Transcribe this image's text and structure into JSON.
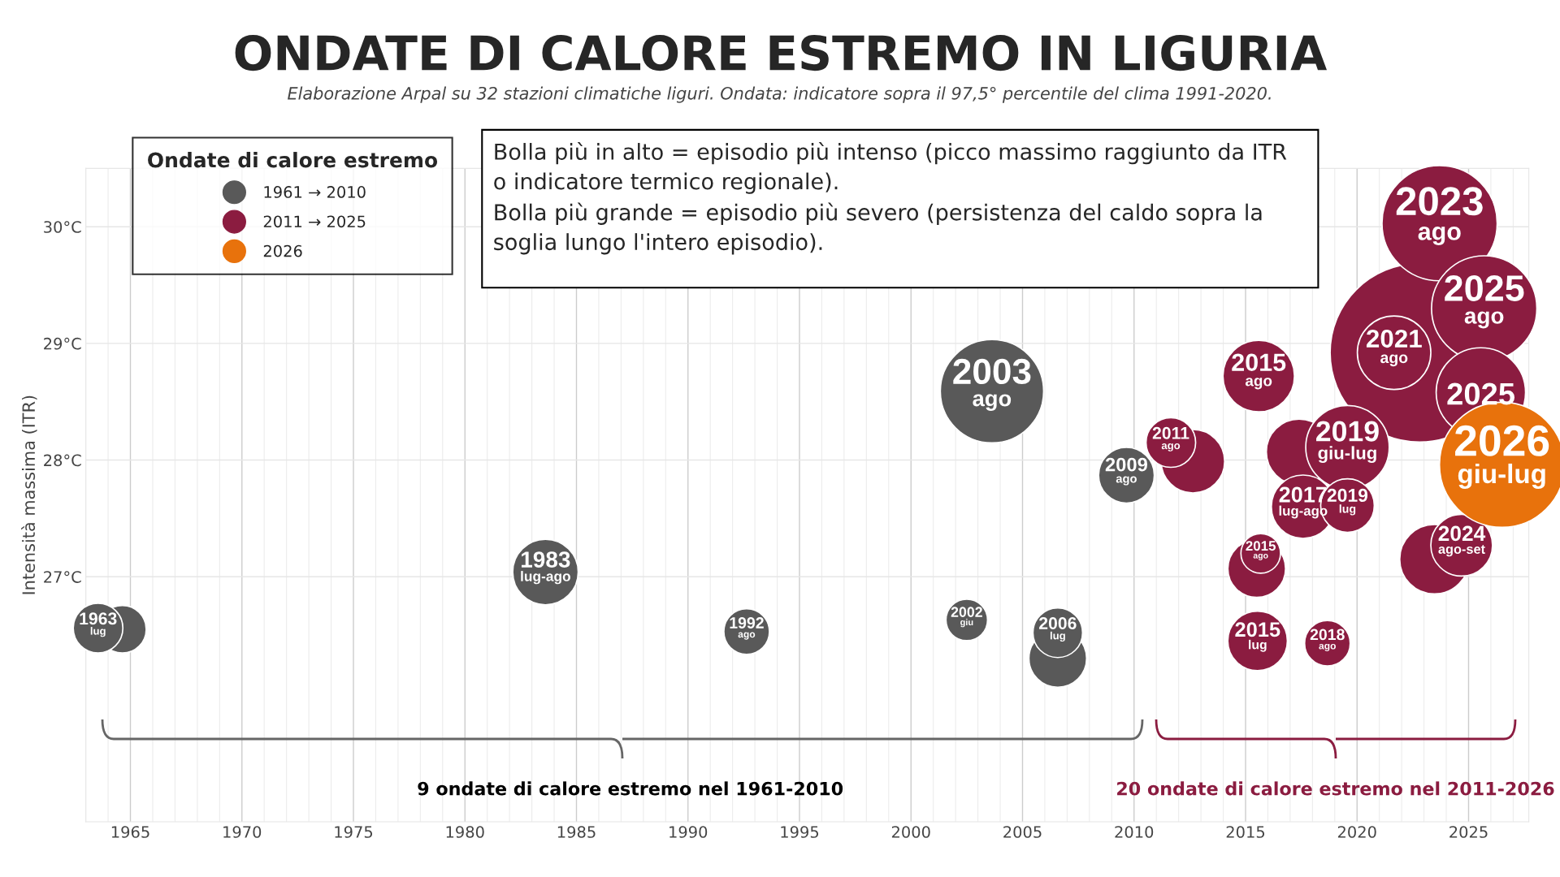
{
  "chart_data": {
    "type": "bubble",
    "title": "ONDATE DI CALORE ESTREMO IN LIGURIA",
    "subtitle": "Elaborazione Arpal su 32 stazioni climatiche liguri. Ondata: indicatore sopra il 97,5° percentile del clima 1991-2020.",
    "ylabel": "Intensità massima (ITR)",
    "legend_title": "Ondate di calore estremo",
    "xlim": [
      1963,
      2027.7
    ],
    "xticks": [
      1965,
      1970,
      1975,
      1980,
      1985,
      1990,
      1995,
      2000,
      2005,
      2010,
      2015,
      2020,
      2025
    ],
    "ylim": [
      24.9,
      30.5
    ],
    "yticks": [
      {
        "value": 27,
        "label": "27°C"
      },
      {
        "value": 28,
        "label": "28°C"
      },
      {
        "value": 29,
        "label": "29°C"
      },
      {
        "value": 30,
        "label": "30°C"
      }
    ],
    "grid": true,
    "legend": "top left",
    "series": [
      {
        "name": "1961 → 2010",
        "color": "#595959",
        "x": [
          1964.64,
          1963.55,
          1983.61,
          1992.63,
          2002.5,
          2003.63,
          2006.58,
          2006.58,
          2009.66
        ],
        "values": [
          26.55,
          26.56,
          27.04,
          26.53,
          26.63,
          28.59,
          26.3,
          26.52,
          27.87
        ],
        "sizes": [
          0.071,
          0.077,
          0.134,
          0.065,
          0.054,
          0.334,
          0.104,
          0.077,
          0.097
        ]
      },
      {
        "name": "2011 → 2025",
        "color": "#8b1c40",
        "x": [
          2022.8,
          2023.7,
          2021.66,
          2025.7,
          2025.55,
          2015.59,
          2012.64,
          2011.65,
          2017.4,
          2019.57,
          2017.58,
          2019.57,
          2015.5,
          2015.68,
          2015.54,
          2018.67,
          2023.47,
          2024.69
        ],
        "values": [
          28.92,
          30.03,
          28.92,
          29.3,
          28.58,
          28.72,
          27.99,
          28.15,
          28.07,
          28.11,
          27.6,
          27.61,
          27.07,
          27.2,
          26.45,
          26.43,
          27.15,
          27.27
        ],
        "sizes": [
          1,
          0.415,
          0.169,
          0.347,
          0.25,
          0.16,
          0.126,
          0.077,
          0.134,
          0.218,
          0.126,
          0.09,
          0.104,
          0.049,
          0.111,
          0.065,
          0.151,
          0.119
        ]
      },
      {
        "name": "2026",
        "color": "#e8720c",
        "x": [
          2026.5
        ],
        "values": [
          27.96
        ],
        "sizes": [
          0.49
        ]
      }
    ],
    "annotations": [
      "Bolla più in alto = episodio più intenso (picco massimo raggiunto da ITR\no indicatore termico regionale).\nBolla più grande = episodio più severo (persistenza del caldo sopra la\nsoglia lungo l'intero episodio).",
      "9 ondate di calore estremo nel 1961-2010",
      "20 ondate di calore estremo nel 2011-2026",
      {
        "text": "1963\nlug",
        "x": 1963.55,
        "y": 26.56
      },
      {
        "text": "1983\nlug-ago",
        "x": 1983.61,
        "y": 27.04
      },
      {
        "text": "1992\nago",
        "x": 1992.63,
        "y": 26.53
      },
      {
        "text": "2002\ngiu",
        "x": 2002.5,
        "y": 26.63
      },
      {
        "text": "2003\nago",
        "x": 2003.63,
        "y": 28.59
      },
      {
        "text": "2006\nlug",
        "x": 2006.58,
        "y": 26.52
      },
      {
        "text": "2009\nago",
        "x": 2009.66,
        "y": 27.87
      },
      {
        "text": "2023\nago",
        "x": 2023.7,
        "y": 30.03
      },
      {
        "text": "2021\nago",
        "x": 2021.66,
        "y": 28.92
      },
      {
        "text": "2025\nago",
        "x": 2025.7,
        "y": 29.3
      },
      {
        "text": "2025",
        "x": 2025.55,
        "y": 28.58
      },
      {
        "text": "2015\nago",
        "x": 2015.59,
        "y": 28.72
      },
      {
        "text": "2011\nago",
        "x": 2011.65,
        "y": 28.15
      },
      {
        "text": "2019\ngiu-lug",
        "x": 2019.57,
        "y": 28.11
      },
      {
        "text": "2017\nlug-ago",
        "x": 2017.58,
        "y": 27.6
      },
      {
        "text": "2019\nlug",
        "x": 2019.57,
        "y": 27.61
      },
      {
        "text": "2015\nago",
        "x": 2015.68,
        "y": 27.2
      },
      {
        "text": "2015\nlug",
        "x": 2015.54,
        "y": 26.45
      },
      {
        "text": "2018\nago",
        "x": 2018.67,
        "y": 26.43
      },
      {
        "text": "2024\nago-set",
        "x": 2024.69,
        "y": 27.27
      },
      {
        "text": "2026\ngiu-lug",
        "x": 2026.5,
        "y": 27.96
      }
    ]
  }
}
